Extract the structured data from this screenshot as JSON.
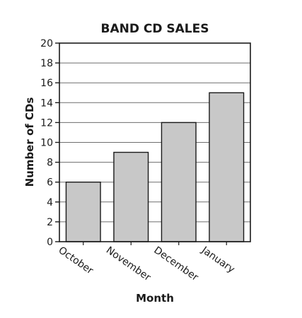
{
  "chart_data": {
    "type": "bar",
    "title": "BAND CD SALES",
    "xlabel": "Month",
    "ylabel": "Number of CDs",
    "categories": [
      "October",
      "November",
      "December",
      "January"
    ],
    "values": [
      6,
      9,
      12,
      15
    ],
    "ylim": [
      0,
      20
    ],
    "yticks": [
      0,
      2,
      4,
      6,
      8,
      10,
      12,
      14,
      16,
      18,
      20
    ],
    "grid": true,
    "bar_color": "#c8c8c8",
    "edge_color": "#1a1a1a"
  }
}
